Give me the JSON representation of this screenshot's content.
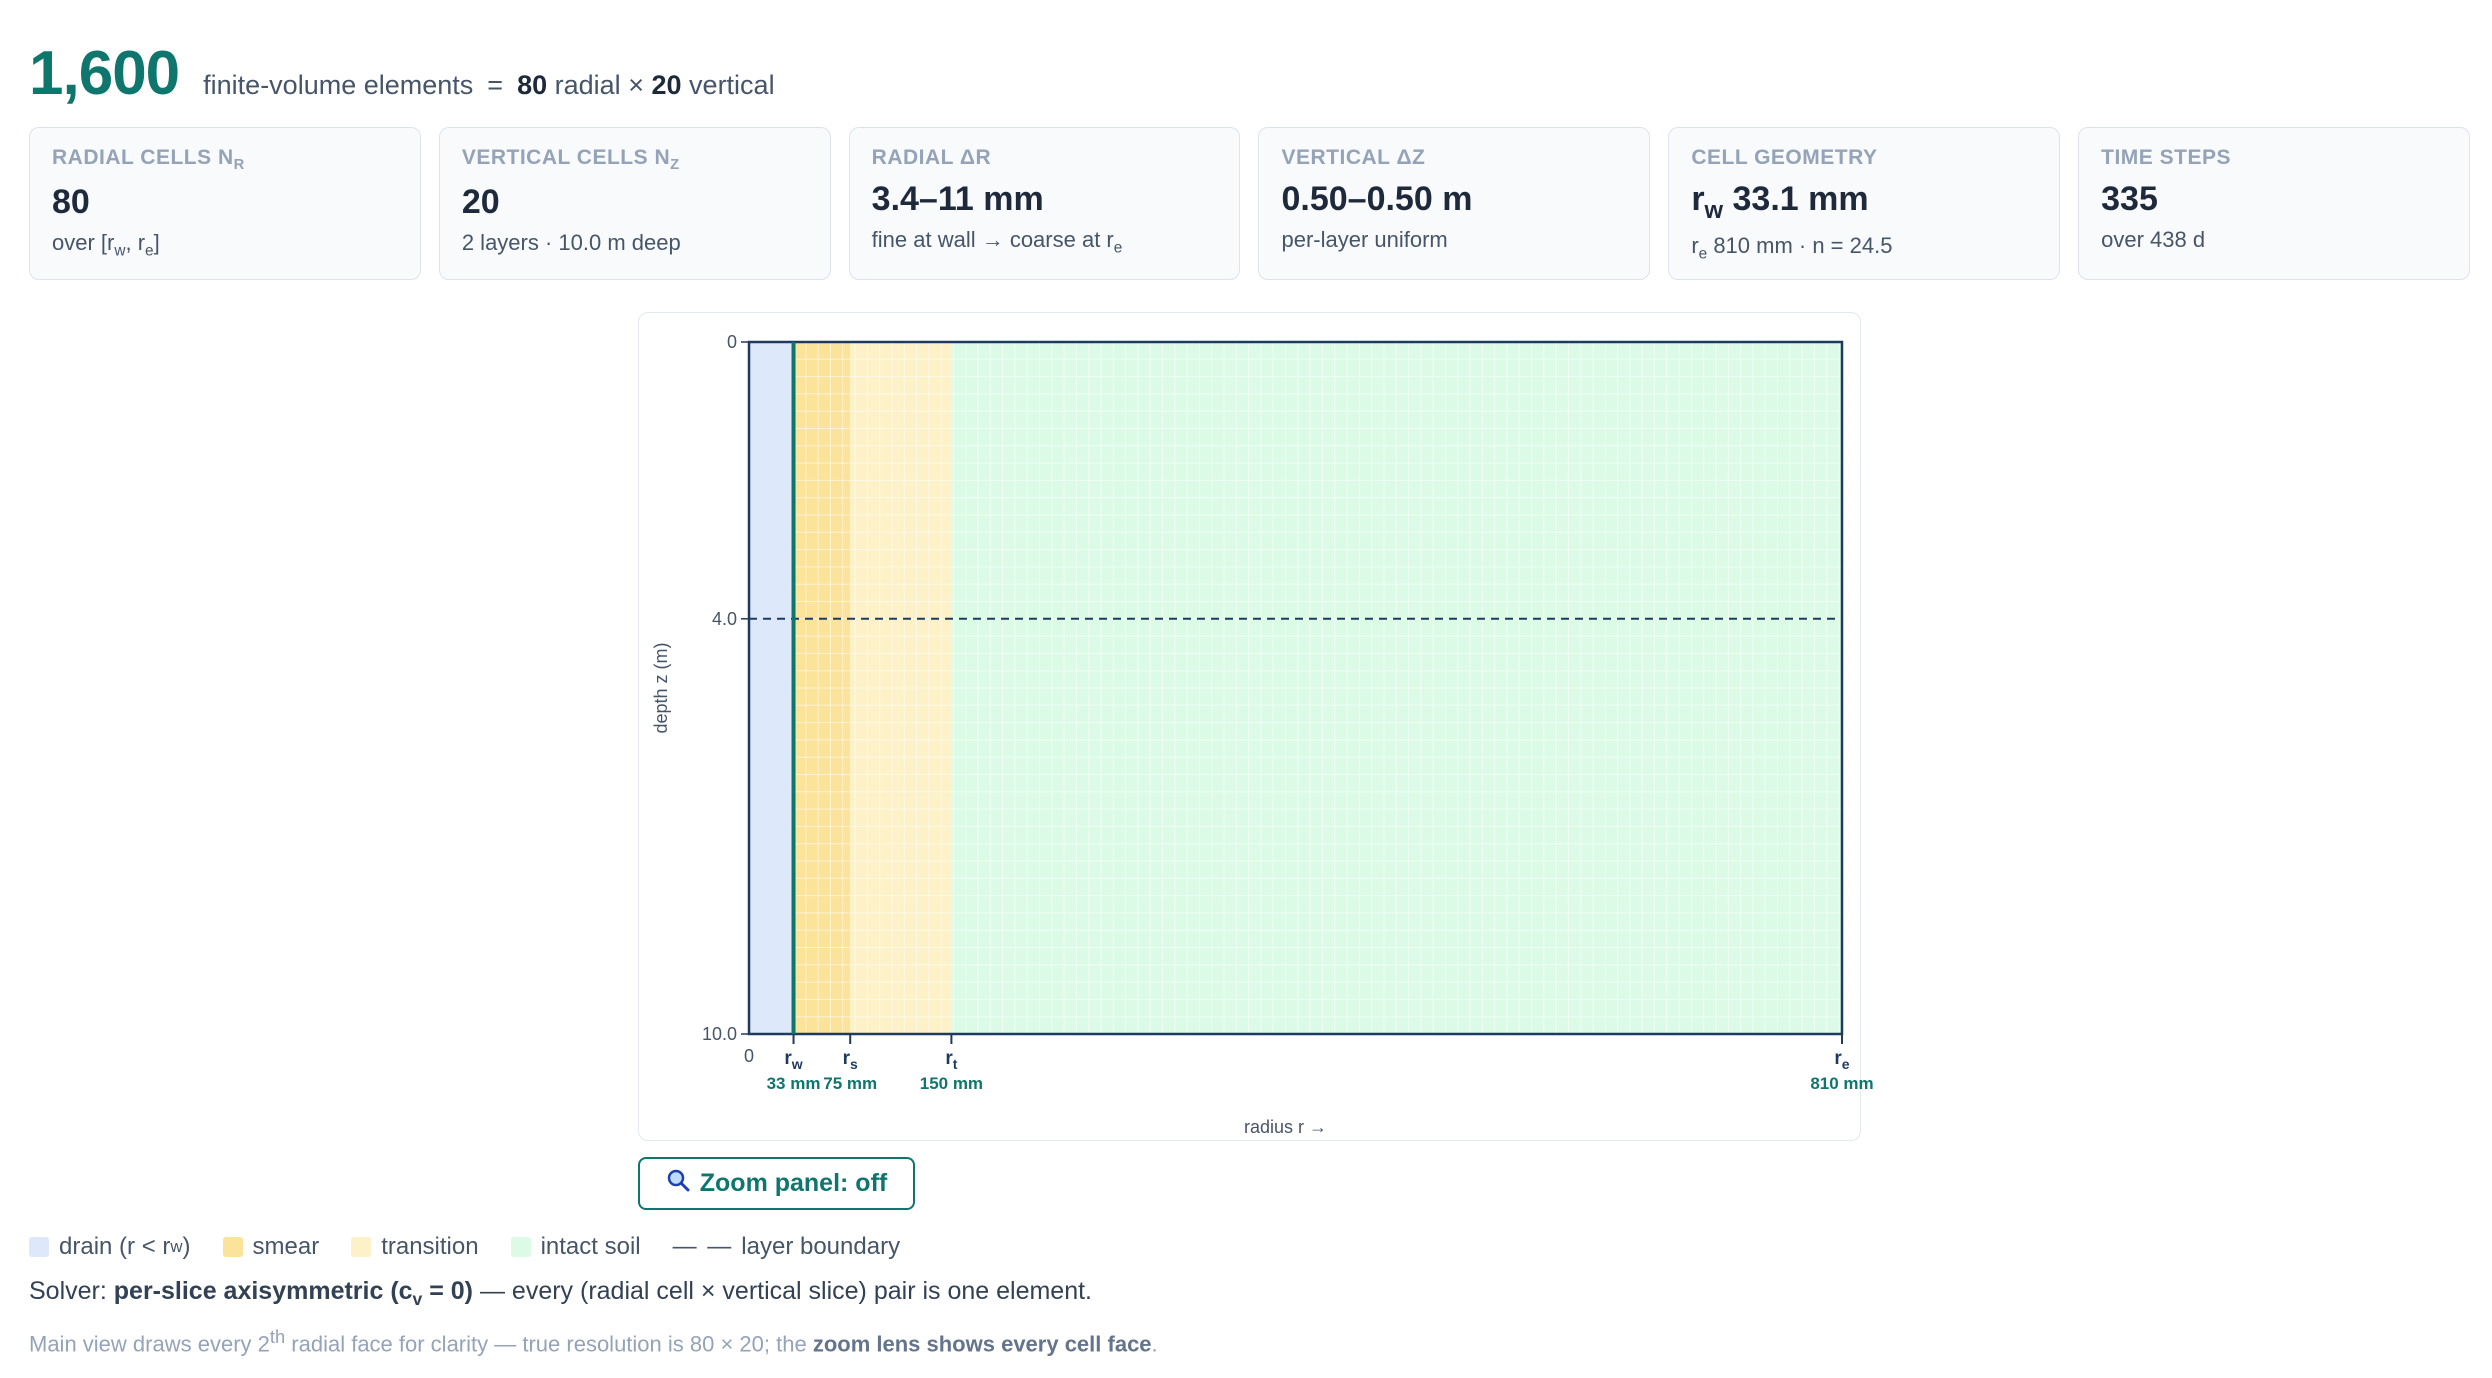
{
  "header": {
    "total": "1,600",
    "label": "finite-volume elements",
    "eq": "=",
    "radial_count": "80",
    "radial_word": "radial",
    "times": "×",
    "vertical_count": "20",
    "vertical_word": "vertical"
  },
  "cards": [
    {
      "label": "RADIAL CELLS N",
      "label_sub": "r",
      "value": "80",
      "sub_pre": "over [r",
      "sub_a": "w",
      "sub_mid": ", r",
      "sub_b": "e",
      "sub_post": "]"
    },
    {
      "label": "VERTICAL CELLS N",
      "label_sub": "z",
      "value": "20",
      "sub": "2 layers · 10.0 m deep"
    },
    {
      "label": "RADIAL ΔR",
      "value": "3.4–11 mm",
      "sub_pre": "fine at wall → coarse at r",
      "sub_a": "e"
    },
    {
      "label": "VERTICAL ΔZ",
      "value": "0.50–0.50 m",
      "sub": "per-layer uniform"
    },
    {
      "label": "CELL GEOMETRY",
      "value_pre": "r",
      "value_sub": "w",
      "value_post": " 33.1 mm",
      "sub_pre": "r",
      "sub_a": "e",
      "sub_post": " 810 mm · n = 24.5"
    },
    {
      "label": "TIME STEPS",
      "value": "335",
      "sub": "over 438 d"
    }
  ],
  "plot": {
    "depth_ticks": [
      "0",
      "4.0",
      "10.0"
    ],
    "depth_values": [
      0,
      4.0,
      10.0
    ],
    "depth_max": 10.0,
    "layer_boundary_depth": 4.0,
    "y_label": "depth z (m)",
    "x_label": "radius r →",
    "x_origin": "0",
    "r_max_mm": 810,
    "zones": [
      {
        "name": "drain",
        "from_mm": 0,
        "to_mm": 33,
        "color": "#dde8fb"
      },
      {
        "name": "smear",
        "from_mm": 33,
        "to_mm": 75,
        "color": "#fbe39a"
      },
      {
        "name": "transition",
        "from_mm": 75,
        "to_mm": 150,
        "color": "#fdf1c8"
      },
      {
        "name": "intact",
        "from_mm": 150,
        "to_mm": 810,
        "color": "#dcfbe6"
      }
    ],
    "radial_markers": [
      {
        "sym": "r",
        "sub": "w",
        "value": "33 mm",
        "mm": 33
      },
      {
        "sym": "r",
        "sub": "s",
        "value": "75 mm",
        "mm": 75
      },
      {
        "sym": "r",
        "sub": "t",
        "value": "150 mm",
        "mm": 150
      },
      {
        "sym": "r",
        "sub": "e",
        "value": "810 mm",
        "mm": 810
      }
    ],
    "colors": {
      "frame": "#1e3a5f",
      "drain_wall": "#0f766e",
      "grid": "#ffffff",
      "marker_label": "#1e3a5f",
      "marker_value": "#0f766e"
    }
  },
  "zoom_button": {
    "icon": "magnifier-icon",
    "label": "Zoom panel: off"
  },
  "legend": [
    {
      "label": "drain (r < r",
      "label_sub": "w",
      "label_post": ")",
      "color": "#dde8fb"
    },
    {
      "label": "smear",
      "color": "#fbe39a"
    },
    {
      "label": "transition",
      "color": "#fdf1c8"
    },
    {
      "label": "intact soil",
      "color": "#dcfbe6"
    }
  ],
  "legend_boundary": {
    "dash": "— —",
    "label": "layer boundary"
  },
  "solver": {
    "prefix": "Solver:",
    "bold": "per-slice axisymmetric (c",
    "bold_sub": "v",
    "bold_post": " = 0)",
    "rest": "— every (radial cell × vertical slice) pair is one element."
  },
  "note": {
    "pre": "Main view draws every 2",
    "sup": "th",
    "mid": " radial face for clarity — true resolution is 80 × 20; the ",
    "bold": "zoom lens shows every cell face",
    "post": "."
  }
}
